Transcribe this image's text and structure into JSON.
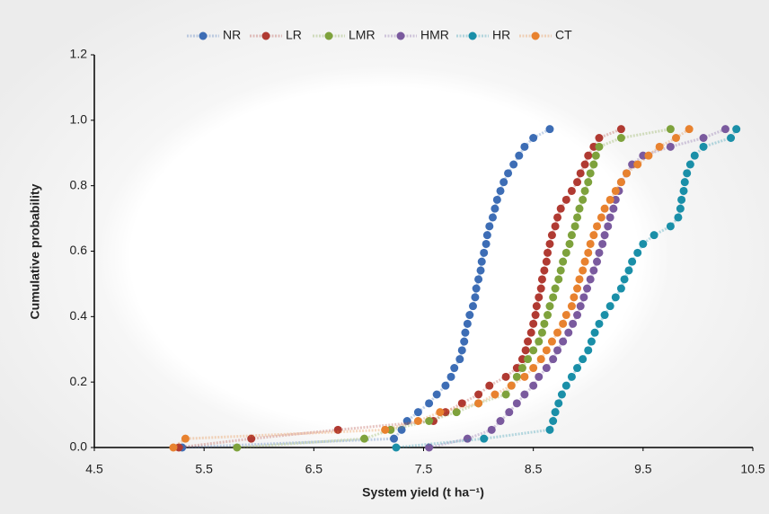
{
  "chart_data": {
    "type": "scatter",
    "xlabel": "System yield (t ha⁻¹)",
    "ylabel": "Cumulative probability",
    "xlim": [
      4.5,
      10.5
    ],
    "xticks": [
      4.5,
      5.5,
      6.5,
      7.5,
      8.5,
      9.5,
      10.5
    ],
    "ylim": [
      0,
      1.2
    ],
    "yticks": [
      {
        "value": 0,
        "label": "0.0"
      },
      {
        "value": 0.2,
        "label": "0.2"
      },
      {
        "value": 0.4,
        "label": "0.4"
      },
      {
        "value": 0.6,
        "label": "0.6"
      },
      {
        "value": 0.8,
        "label": "0.8"
      },
      {
        "value": 1.0,
        "label": "1.0"
      },
      {
        "value": 1.2,
        "label": "1.2"
      }
    ],
    "grid": false,
    "legend": "top",
    "y": [
      0,
      0.027,
      0.054,
      0.081,
      0.108,
      0.135,
      0.162,
      0.189,
      0.216,
      0.243,
      0.27,
      0.297,
      0.324,
      0.351,
      0.378,
      0.405,
      0.432,
      0.459,
      0.486,
      0.514,
      0.541,
      0.568,
      0.595,
      0.622,
      0.649,
      0.676,
      0.703,
      0.73,
      0.757,
      0.784,
      0.811,
      0.838,
      0.865,
      0.892,
      0.919,
      0.946,
      0.973
    ],
    "series": [
      {
        "name": "NR",
        "color": "#3d6db5",
        "x": [
          5.3,
          7.23,
          7.3,
          7.35,
          7.45,
          7.55,
          7.62,
          7.7,
          7.75,
          7.78,
          7.83,
          7.85,
          7.87,
          7.88,
          7.9,
          7.92,
          7.95,
          7.97,
          7.98,
          8.0,
          8.02,
          8.03,
          8.05,
          8.07,
          8.08,
          8.1,
          8.13,
          8.15,
          8.17,
          8.2,
          8.23,
          8.27,
          8.32,
          8.37,
          8.42,
          8.5,
          8.65
        ]
      },
      {
        "name": "LR",
        "color": "#b03a32",
        "x": [
          5.27,
          5.93,
          6.72,
          7.59,
          7.7,
          7.85,
          8.0,
          8.1,
          8.25,
          8.35,
          8.4,
          8.43,
          8.45,
          8.48,
          8.5,
          8.52,
          8.53,
          8.55,
          8.57,
          8.58,
          8.6,
          8.62,
          8.63,
          8.65,
          8.67,
          8.7,
          8.72,
          8.75,
          8.8,
          8.85,
          8.9,
          8.93,
          8.97,
          9.0,
          9.05,
          9.1,
          9.3
        ]
      },
      {
        "name": "LMR",
        "color": "#7ea23c",
        "x": [
          5.8,
          6.96,
          7.2,
          7.55,
          7.8,
          8.0,
          8.25,
          8.3,
          8.35,
          8.4,
          8.45,
          8.5,
          8.55,
          8.58,
          8.6,
          8.63,
          8.65,
          8.68,
          8.7,
          8.73,
          8.75,
          8.77,
          8.8,
          8.83,
          8.85,
          8.88,
          8.9,
          8.92,
          8.95,
          8.97,
          9.0,
          9.02,
          9.05,
          9.07,
          9.1,
          9.3,
          9.75
        ]
      },
      {
        "name": "HMR",
        "color": "#7a5a9e",
        "x": [
          7.55,
          7.9,
          8.12,
          8.2,
          8.28,
          8.35,
          8.42,
          8.5,
          8.55,
          8.62,
          8.68,
          8.72,
          8.77,
          8.82,
          8.86,
          8.9,
          8.93,
          8.96,
          8.99,
          9.02,
          9.05,
          9.08,
          9.1,
          9.13,
          9.15,
          9.18,
          9.2,
          9.23,
          9.25,
          9.28,
          9.3,
          9.35,
          9.4,
          9.5,
          9.75,
          10.05,
          10.25
        ]
      },
      {
        "name": "HR",
        "color": "#1a8fa8",
        "x": [
          7.25,
          8.05,
          8.65,
          8.68,
          8.7,
          8.73,
          8.76,
          8.8,
          8.85,
          8.9,
          8.95,
          9.0,
          9.03,
          9.06,
          9.1,
          9.15,
          9.2,
          9.25,
          9.3,
          9.33,
          9.37,
          9.4,
          9.45,
          9.5,
          9.6,
          9.75,
          9.82,
          9.84,
          9.85,
          9.87,
          9.88,
          9.9,
          9.93,
          9.97,
          10.05,
          10.3,
          10.35
        ]
      },
      {
        "name": "CT",
        "color": "#e8822f",
        "x": [
          5.22,
          5.33,
          7.15,
          7.45,
          7.65,
          8.0,
          8.15,
          8.3,
          8.42,
          8.5,
          8.57,
          8.62,
          8.67,
          8.72,
          8.77,
          8.8,
          8.85,
          8.87,
          8.9,
          8.92,
          8.95,
          8.97,
          9.0,
          9.02,
          9.05,
          9.08,
          9.12,
          9.15,
          9.2,
          9.25,
          9.3,
          9.35,
          9.45,
          9.55,
          9.65,
          9.8,
          9.92
        ]
      }
    ]
  }
}
